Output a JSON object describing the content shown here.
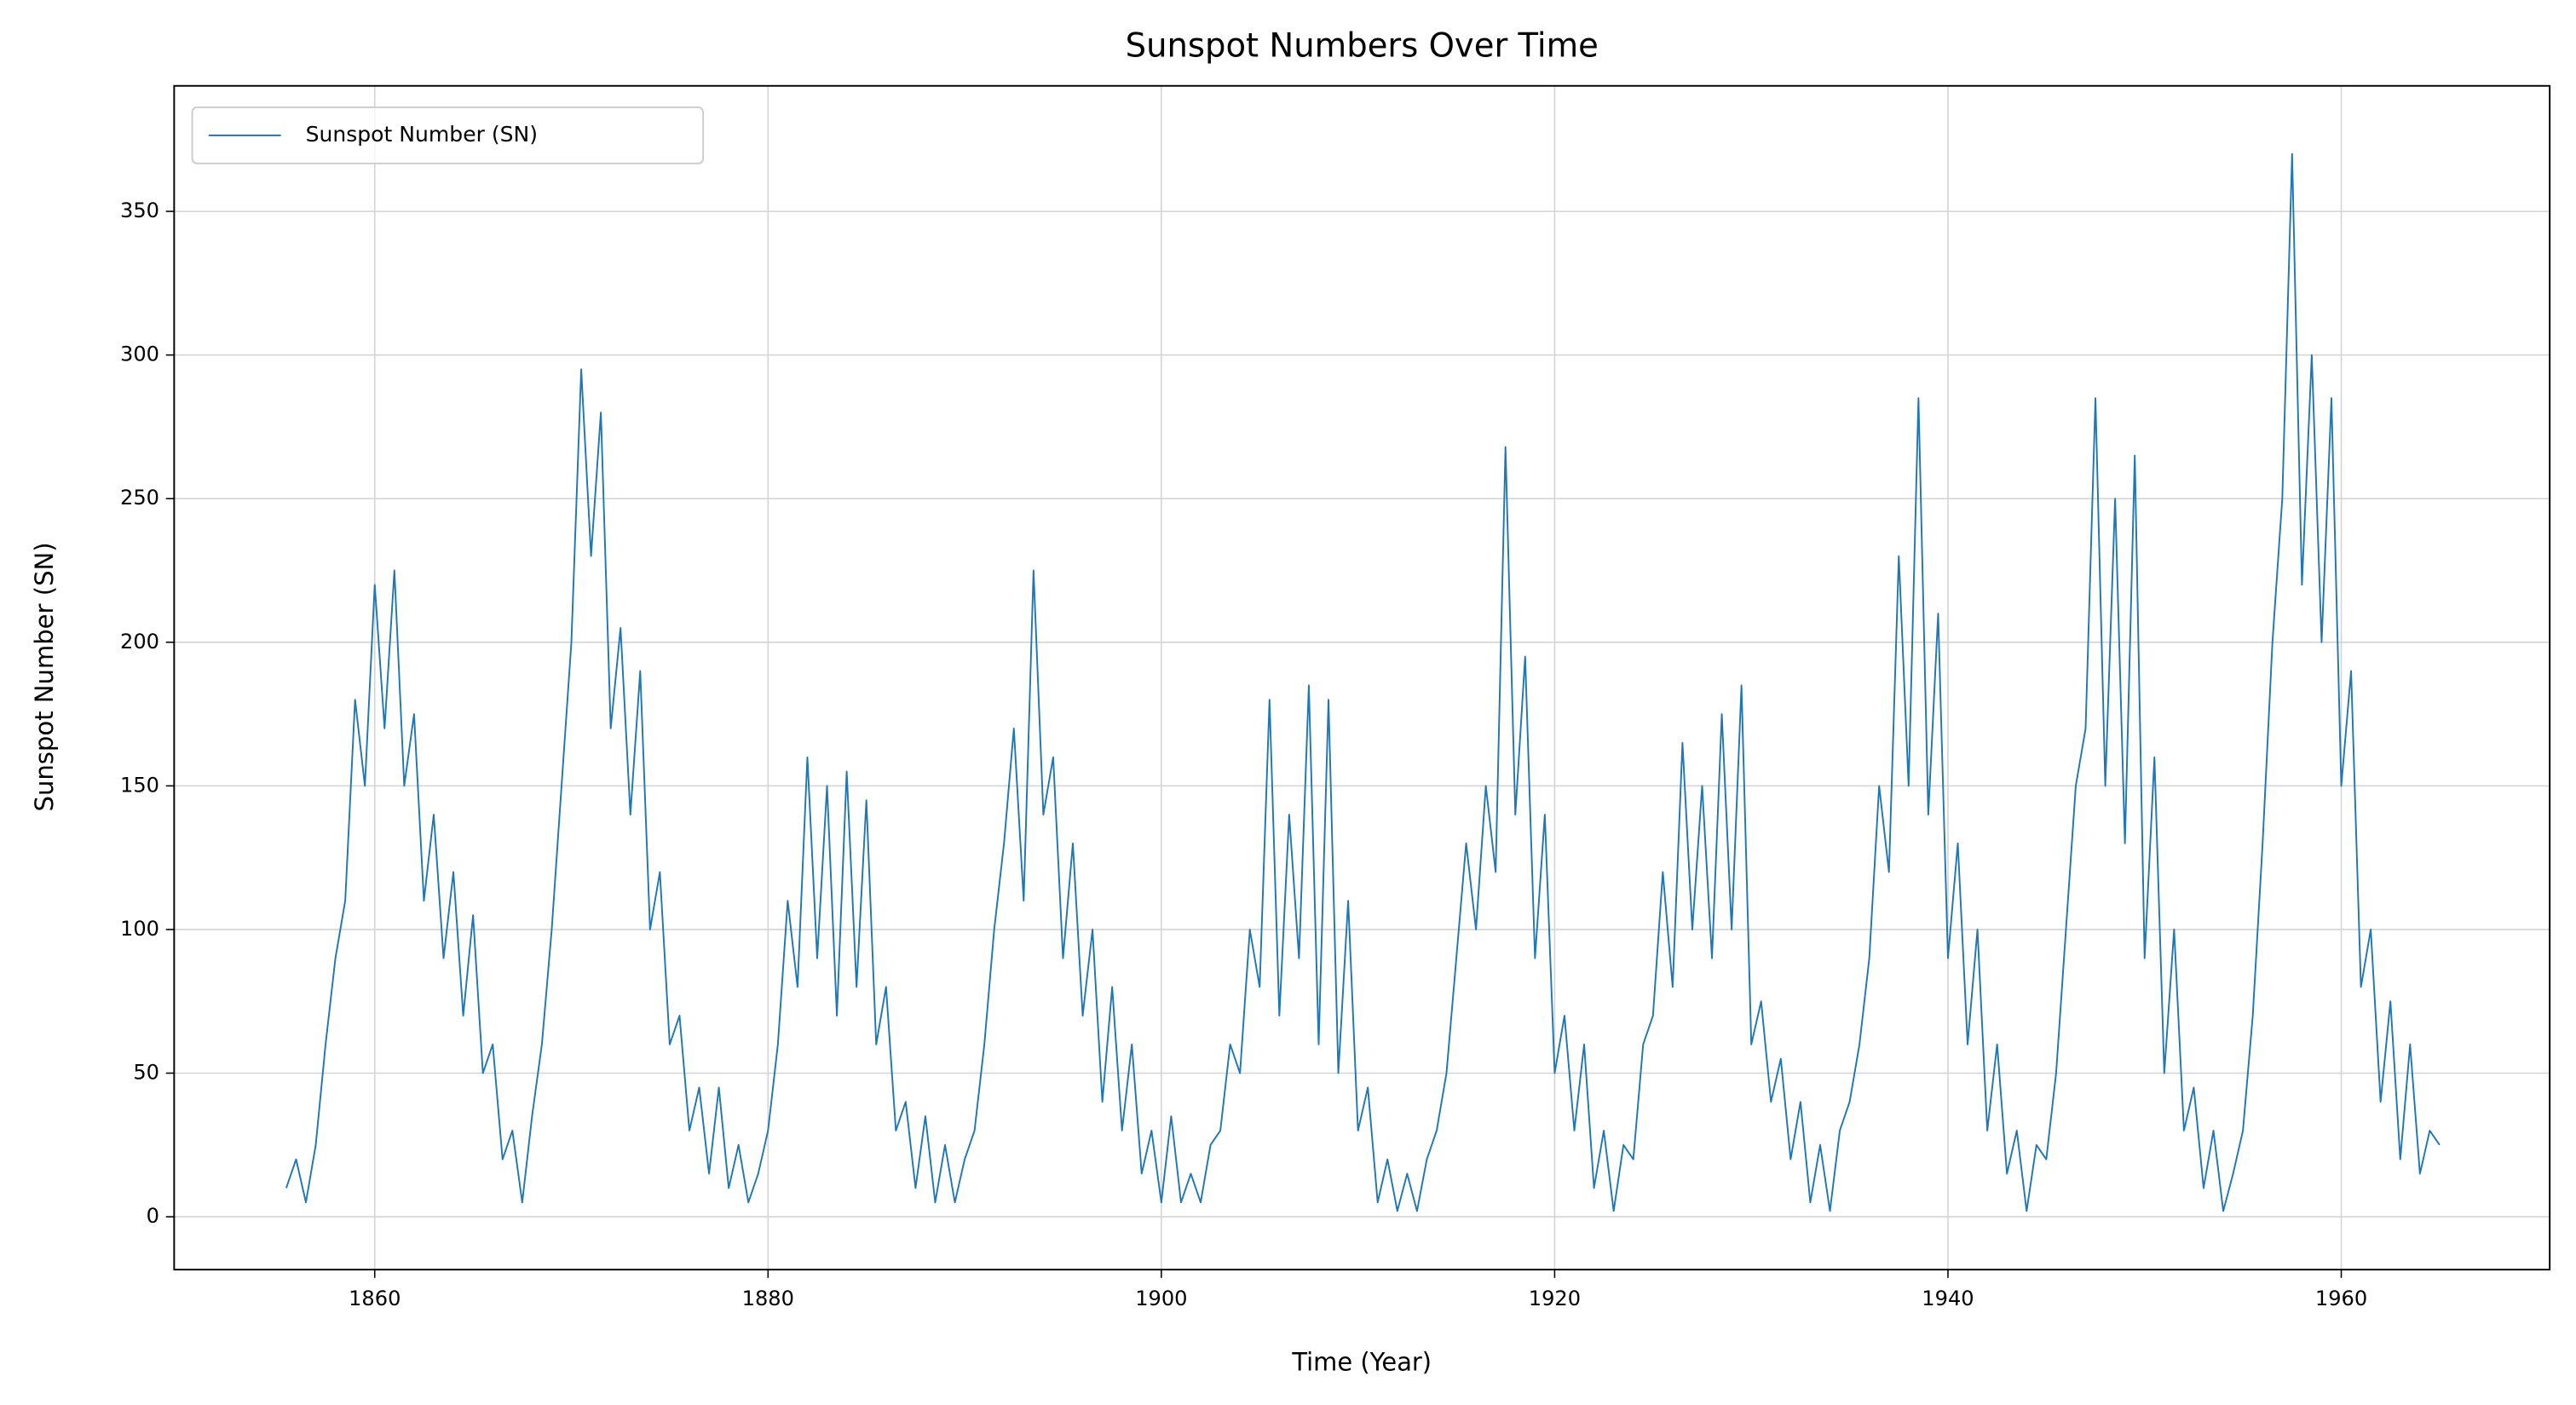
{
  "chart_data": {
    "type": "line",
    "title": "Sunspot Numbers Over Time",
    "x_label": "Time (Year)",
    "y_label": "Sunspot Number (SN)",
    "xlim": [
      1849.8,
      1970.6
    ],
    "ylim": [
      -18.4,
      393.7
    ],
    "xticks": [
      1860,
      1880,
      1900,
      1920,
      1940,
      1960
    ],
    "yticks": [
      0,
      50,
      100,
      150,
      200,
      250,
      300,
      350
    ],
    "grid": true,
    "legend": "upper left",
    "x": [
      1855.5,
      1856,
      1856.5,
      1857,
      1857.5,
      1858,
      1858.5,
      1859,
      1859.5,
      1860,
      1860.5,
      1861,
      1861.5,
      1862,
      1862.5,
      1863,
      1863.5,
      1864,
      1864.5,
      1865,
      1865.5,
      1866,
      1866.5,
      1867,
      1867.5,
      1868,
      1868.5,
      1869,
      1869.5,
      1870,
      1870.5,
      1871,
      1871.5,
      1872,
      1872.5,
      1873,
      1873.5,
      1874,
      1874.5,
      1875,
      1875.5,
      1876,
      1876.5,
      1877,
      1877.5,
      1878,
      1878.5,
      1879,
      1879.5,
      1880,
      1880.5,
      1881,
      1881.5,
      1882,
      1882.5,
      1883,
      1883.5,
      1884,
      1884.5,
      1885,
      1885.5,
      1886,
      1886.5,
      1887,
      1887.5,
      1888,
      1888.5,
      1889,
      1889.5,
      1890,
      1890.5,
      1891,
      1891.5,
      1892,
      1892.5,
      1893,
      1893.5,
      1894,
      1894.5,
      1895,
      1895.5,
      1896,
      1896.5,
      1897,
      1897.5,
      1898,
      1898.5,
      1899,
      1899.5,
      1900,
      1900.5,
      1901,
      1901.5,
      1902,
      1902.5,
      1903,
      1903.5,
      1904,
      1904.5,
      1905,
      1905.5,
      1906,
      1906.5,
      1907,
      1907.5,
      1908,
      1908.5,
      1909,
      1909.5,
      1910,
      1910.5,
      1911,
      1911.5,
      1912,
      1912.5,
      1913,
      1913.5,
      1914,
      1914.5,
      1915,
      1915.5,
      1916,
      1916.5,
      1917,
      1917.5,
      1918,
      1918.5,
      1919,
      1919.5,
      1920,
      1920.5,
      1921,
      1921.5,
      1922,
      1922.5,
      1923,
      1923.5,
      1924,
      1924.5,
      1925,
      1925.5,
      1926,
      1926.5,
      1927,
      1927.5,
      1928,
      1928.5,
      1929,
      1929.5,
      1930,
      1930.5,
      1931,
      1931.5,
      1932,
      1932.5,
      1933,
      1933.5,
      1934,
      1934.5,
      1935,
      1935.5,
      1936,
      1936.5,
      1937,
      1937.5,
      1938,
      1938.5,
      1939,
      1939.5,
      1940,
      1940.5,
      1941,
      1941.5,
      1942,
      1942.5,
      1943,
      1943.5,
      1944,
      1944.5,
      1945,
      1945.5,
      1946,
      1946.5,
      1947,
      1947.5,
      1948,
      1948.5,
      1949,
      1949.5,
      1950,
      1950.5,
      1951,
      1951.5,
      1952,
      1952.5,
      1953,
      1953.5,
      1954,
      1954.5,
      1955,
      1955.5,
      1956,
      1956.5,
      1957,
      1957.5,
      1958,
      1958.5,
      1959,
      1959.5,
      1960,
      1960.5,
      1961,
      1961.5,
      1962,
      1962.5,
      1963,
      1963.5,
      1964,
      1964.5,
      1965
    ],
    "series": [
      {
        "name": "Sunspot Number (SN)",
        "color": "#1f77b4",
        "values": [
          10,
          20,
          5,
          25,
          60,
          90,
          110,
          180,
          150,
          220,
          170,
          225,
          150,
          175,
          110,
          140,
          90,
          120,
          70,
          105,
          50,
          60,
          20,
          30,
          5,
          35,
          60,
          100,
          150,
          200,
          295,
          230,
          280,
          170,
          205,
          140,
          190,
          100,
          120,
          60,
          70,
          30,
          45,
          15,
          45,
          10,
          25,
          5,
          15,
          30,
          60,
          110,
          80,
          160,
          90,
          150,
          70,
          155,
          80,
          145,
          60,
          80,
          30,
          40,
          10,
          35,
          5,
          25,
          5,
          20,
          30,
          60,
          100,
          130,
          170,
          110,
          225,
          140,
          160,
          90,
          130,
          70,
          100,
          40,
          80,
          30,
          60,
          15,
          30,
          5,
          35,
          5,
          15,
          5,
          25,
          30,
          60,
          50,
          100,
          80,
          180,
          70,
          140,
          90,
          185,
          60,
          180,
          50,
          110,
          30,
          45,
          5,
          20,
          2,
          15,
          2,
          20,
          30,
          50,
          90,
          130,
          100,
          150,
          120,
          268,
          140,
          195,
          90,
          140,
          50,
          70,
          30,
          60,
          10,
          30,
          2,
          25,
          20,
          60,
          70,
          120,
          80,
          165,
          100,
          150,
          90,
          175,
          100,
          185,
          60,
          75,
          40,
          55,
          20,
          40,
          5,
          25,
          2,
          30,
          40,
          60,
          90,
          150,
          120,
          230,
          150,
          285,
          140,
          210,
          90,
          130,
          60,
          100,
          30,
          60,
          15,
          30,
          2,
          25,
          20,
          50,
          100,
          150,
          170,
          285,
          150,
          250,
          130,
          265,
          90,
          160,
          50,
          100,
          30,
          45,
          10,
          30,
          2,
          15,
          30,
          70,
          130,
          200,
          250,
          370,
          220,
          300,
          200,
          285,
          150,
          190,
          80,
          100,
          40,
          75,
          20,
          60,
          15,
          30,
          25
        ]
      }
    ]
  }
}
